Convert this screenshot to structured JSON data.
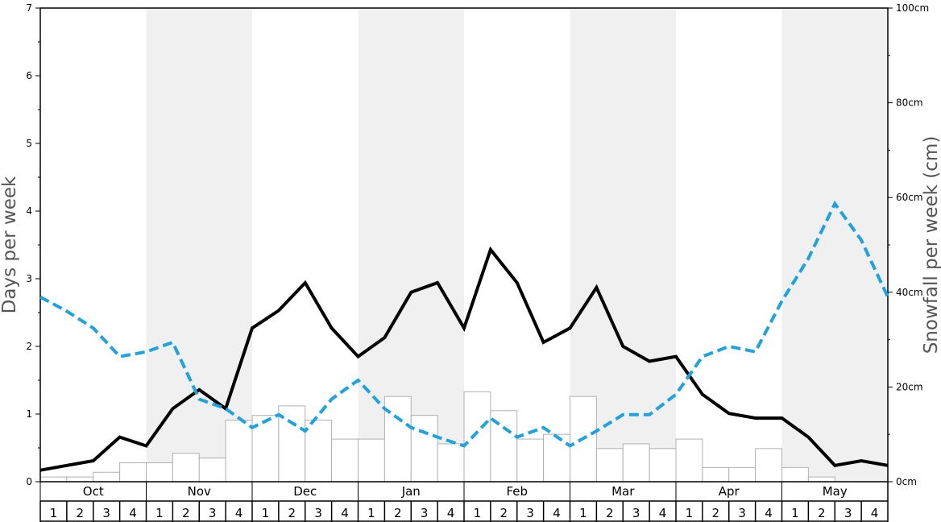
{
  "chart_data": {
    "type": "bar+line",
    "months": [
      "Oct",
      "Nov",
      "Dec",
      "Jan",
      "Feb",
      "Mar",
      "Apr",
      "May"
    ],
    "weeks": [
      "1",
      "2",
      "3",
      "4"
    ],
    "left_axis": {
      "label": "Days per week",
      "ylim": [
        0,
        7
      ],
      "ticks": [
        "0",
        "1",
        "2",
        "3",
        "4",
        "5",
        "6",
        "7"
      ]
    },
    "right_axis": {
      "label": "Snowfall per week (cm)",
      "ylim": [
        0,
        100
      ],
      "ticks": [
        "0cm",
        "20cm",
        "40cm",
        "60cm",
        "80cm",
        "100cm"
      ]
    },
    "series": [
      {
        "kind": "bar",
        "axis": "right",
        "values": [
          1,
          1,
          2,
          4,
          4,
          6,
          5,
          13,
          14,
          16,
          13,
          9,
          9,
          18,
          14,
          8,
          19,
          15,
          9,
          10,
          18,
          7,
          8,
          7,
          9,
          3,
          3,
          7,
          3,
          1,
          0,
          0
        ]
      },
      {
        "kind": "line",
        "axis": "left",
        "color": "#000000",
        "style": "solid",
        "values": [
          0.17,
          0.24,
          0.31,
          0.66,
          0.53,
          1.08,
          1.36,
          1.08,
          2.27,
          2.53,
          2.94,
          2.27,
          1.85,
          2.13,
          2.8,
          2.94,
          2.27,
          3.43,
          2.94,
          2.06,
          2.27,
          2.87,
          2.0,
          1.78,
          1.85,
          1.29,
          1.01,
          0.94,
          0.94,
          0.66,
          0.24,
          0.31,
          0.24
        ]
      },
      {
        "kind": "line",
        "axis": "left",
        "color": "#1ca3e3",
        "style": "dashed",
        "values": [
          2.73,
          2.52,
          2.27,
          1.85,
          1.92,
          2.06,
          1.22,
          1.08,
          0.8,
          0.99,
          0.75,
          1.22,
          1.5,
          1.08,
          0.8,
          0.66,
          0.53,
          0.94,
          0.66,
          0.8,
          0.53,
          0.75,
          0.99,
          0.99,
          1.29,
          1.85,
          2.0,
          1.92,
          2.67,
          3.3,
          4.11,
          3.57,
          2.73
        ]
      }
    ],
    "shading": "alternate months grey (#f0f0f0)"
  }
}
